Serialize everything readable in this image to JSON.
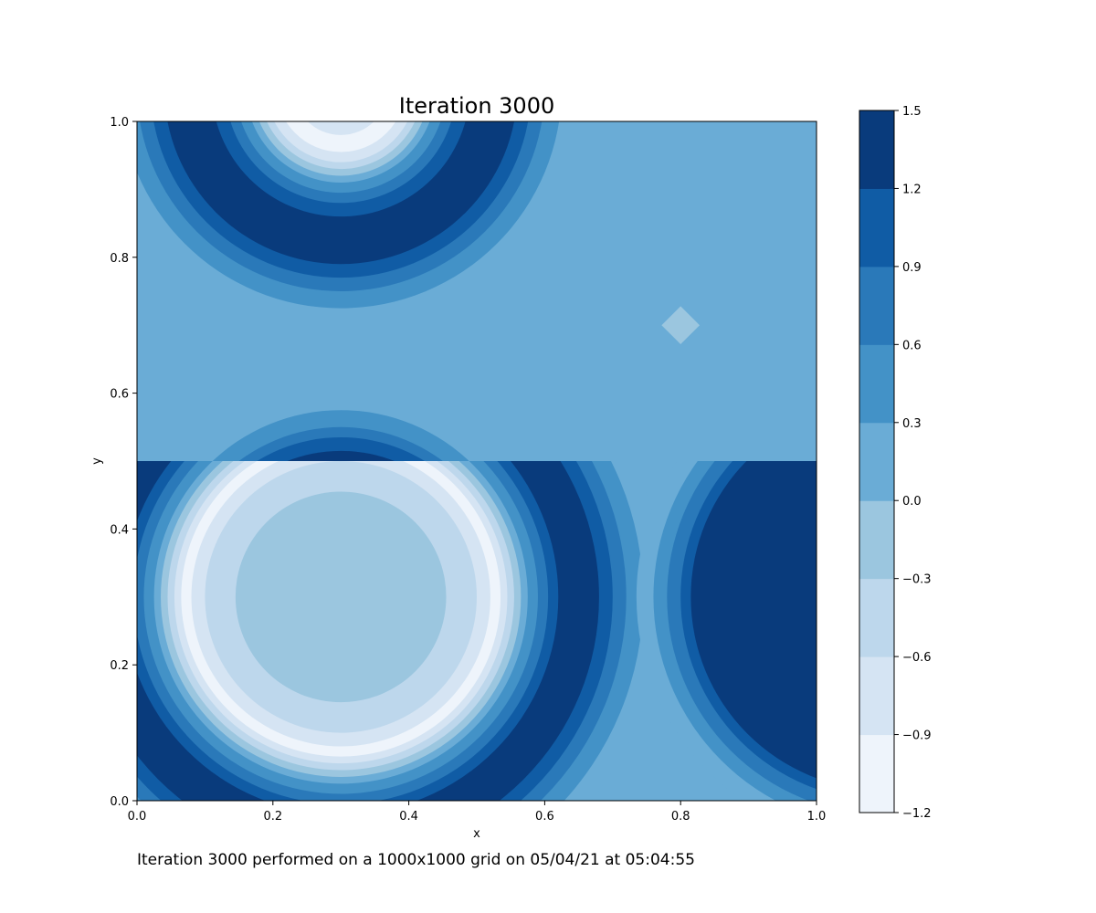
{
  "title": "Iteration 3000",
  "caption": "Iteration 3000 performed on a 1000x1000 grid on 05/04/21 at 05:04:55",
  "chart_data": {
    "type": "heatmap",
    "title": "Iteration 3000",
    "xlabel": "x",
    "ylabel": "y",
    "xlim": [
      0.0,
      1.0
    ],
    "ylim": [
      0.0,
      1.0
    ],
    "x_ticks": [
      "0.0",
      "0.2",
      "0.4",
      "0.6",
      "0.8",
      "1.0"
    ],
    "y_ticks": [
      "0.0",
      "0.2",
      "0.4",
      "0.6",
      "0.8",
      "1.0"
    ],
    "x_tick_values": [
      0.0,
      0.2,
      0.4,
      0.6,
      0.8,
      1.0
    ],
    "y_tick_values": [
      0.0,
      0.2,
      0.4,
      0.6,
      0.8,
      1.0
    ],
    "colormap": "Blues",
    "background_level": 0.15,
    "colorbar": {
      "levels": [
        -1.2,
        -0.9,
        -0.6,
        -0.3,
        0.0,
        0.3,
        0.6,
        0.9,
        1.2,
        1.5
      ],
      "tick_labels": [
        "−1.2",
        "−0.9",
        "−0.6",
        "−0.3",
        "0.0",
        "0.3",
        "0.6",
        "0.9",
        "1.2",
        "1.5"
      ],
      "colors": [
        "#eef4fb",
        "#d5e4f3",
        "#bdd7ec",
        "#9bc6df",
        "#6aacd6",
        "#4392c7",
        "#2a79b9",
        "#105ca5",
        "#093b7c"
      ]
    },
    "features": [
      {
        "name": "lower-left ring",
        "center": [
          0.3,
          0.3
        ],
        "clip_y": [
          0.0,
          0.5
        ],
        "bands": [
          {
            "r_max": 0.475,
            "level_index": 4
          },
          {
            "r_max": 0.445,
            "level_index": 5
          },
          {
            "r_max": 0.42,
            "level_index": 6
          },
          {
            "r_max": 0.4,
            "level_index": 7
          },
          {
            "r_max": 0.38,
            "level_index": 8
          },
          {
            "r_max": 0.32,
            "level_index": 7
          },
          {
            "r_max": 0.305,
            "level_index": 6
          },
          {
            "r_max": 0.29,
            "level_index": 5
          },
          {
            "r_max": 0.275,
            "level_index": 4
          },
          {
            "r_max": 0.265,
            "level_index": 3
          },
          {
            "r_max": 0.255,
            "level_index": 2
          },
          {
            "r_max": 0.245,
            "level_index": 1
          },
          {
            "r_max": 0.235,
            "level_index": 0
          },
          {
            "r_max": 0.22,
            "level_index": 1
          },
          {
            "r_max": 0.2,
            "level_index": 2
          },
          {
            "r_max": 0.155,
            "level_index": 3
          }
        ]
      },
      {
        "name": "lower-left ring upper sliver",
        "center": [
          0.3,
          0.3
        ],
        "clip_y": [
          0.5,
          1.0
        ],
        "bands": [
          {
            "r_max": 0.275,
            "level_index": 5
          },
          {
            "r_max": 0.25,
            "level_index": 6
          },
          {
            "r_max": 0.235,
            "level_index": 7
          },
          {
            "r_max": 0.215,
            "level_index": 8
          },
          {
            "r_max": 0.2,
            "level_index": 4
          }
        ]
      },
      {
        "name": "top ring",
        "center": [
          0.3,
          1.05
        ],
        "clip_y": [
          0.5,
          1.0
        ],
        "bands": [
          {
            "r_max": 0.325,
            "level_index": 5
          },
          {
            "r_max": 0.3,
            "level_index": 6
          },
          {
            "r_max": 0.28,
            "level_index": 7
          },
          {
            "r_max": 0.26,
            "level_index": 8
          },
          {
            "r_max": 0.19,
            "level_index": 7
          },
          {
            "r_max": 0.17,
            "level_index": 6
          },
          {
            "r_max": 0.155,
            "level_index": 5
          },
          {
            "r_max": 0.14,
            "level_index": 4
          },
          {
            "r_max": 0.13,
            "level_index": 3
          },
          {
            "r_max": 0.12,
            "level_index": 2
          },
          {
            "r_max": 0.11,
            "level_index": 1
          },
          {
            "r_max": 0.095,
            "level_index": 0
          },
          {
            "r_max": 0.07,
            "level_index": 1
          },
          {
            "r_max": 0.05,
            "level_index": 2
          }
        ]
      },
      {
        "name": "right ring",
        "center": [
          1.1,
          0.3
        ],
        "clip_y": [
          0.0,
          0.5
        ],
        "bands": [
          {
            "r_max": 0.365,
            "level_index": 4
          },
          {
            "r_max": 0.34,
            "level_index": 5
          },
          {
            "r_max": 0.32,
            "level_index": 6
          },
          {
            "r_max": 0.3,
            "level_index": 7
          },
          {
            "r_max": 0.285,
            "level_index": 8
          }
        ]
      },
      {
        "name": "top right corner",
        "center": [
          1.05,
          1.05
        ],
        "clip_y": [
          0.5,
          1.0
        ],
        "bands": [
          {
            "r_max": 0.07,
            "level_index": 5
          }
        ]
      },
      {
        "name": "diamond",
        "shape": "diamond",
        "center": [
          0.8,
          0.7
        ],
        "half_width": 0.028,
        "level_index": 3
      }
    ]
  }
}
